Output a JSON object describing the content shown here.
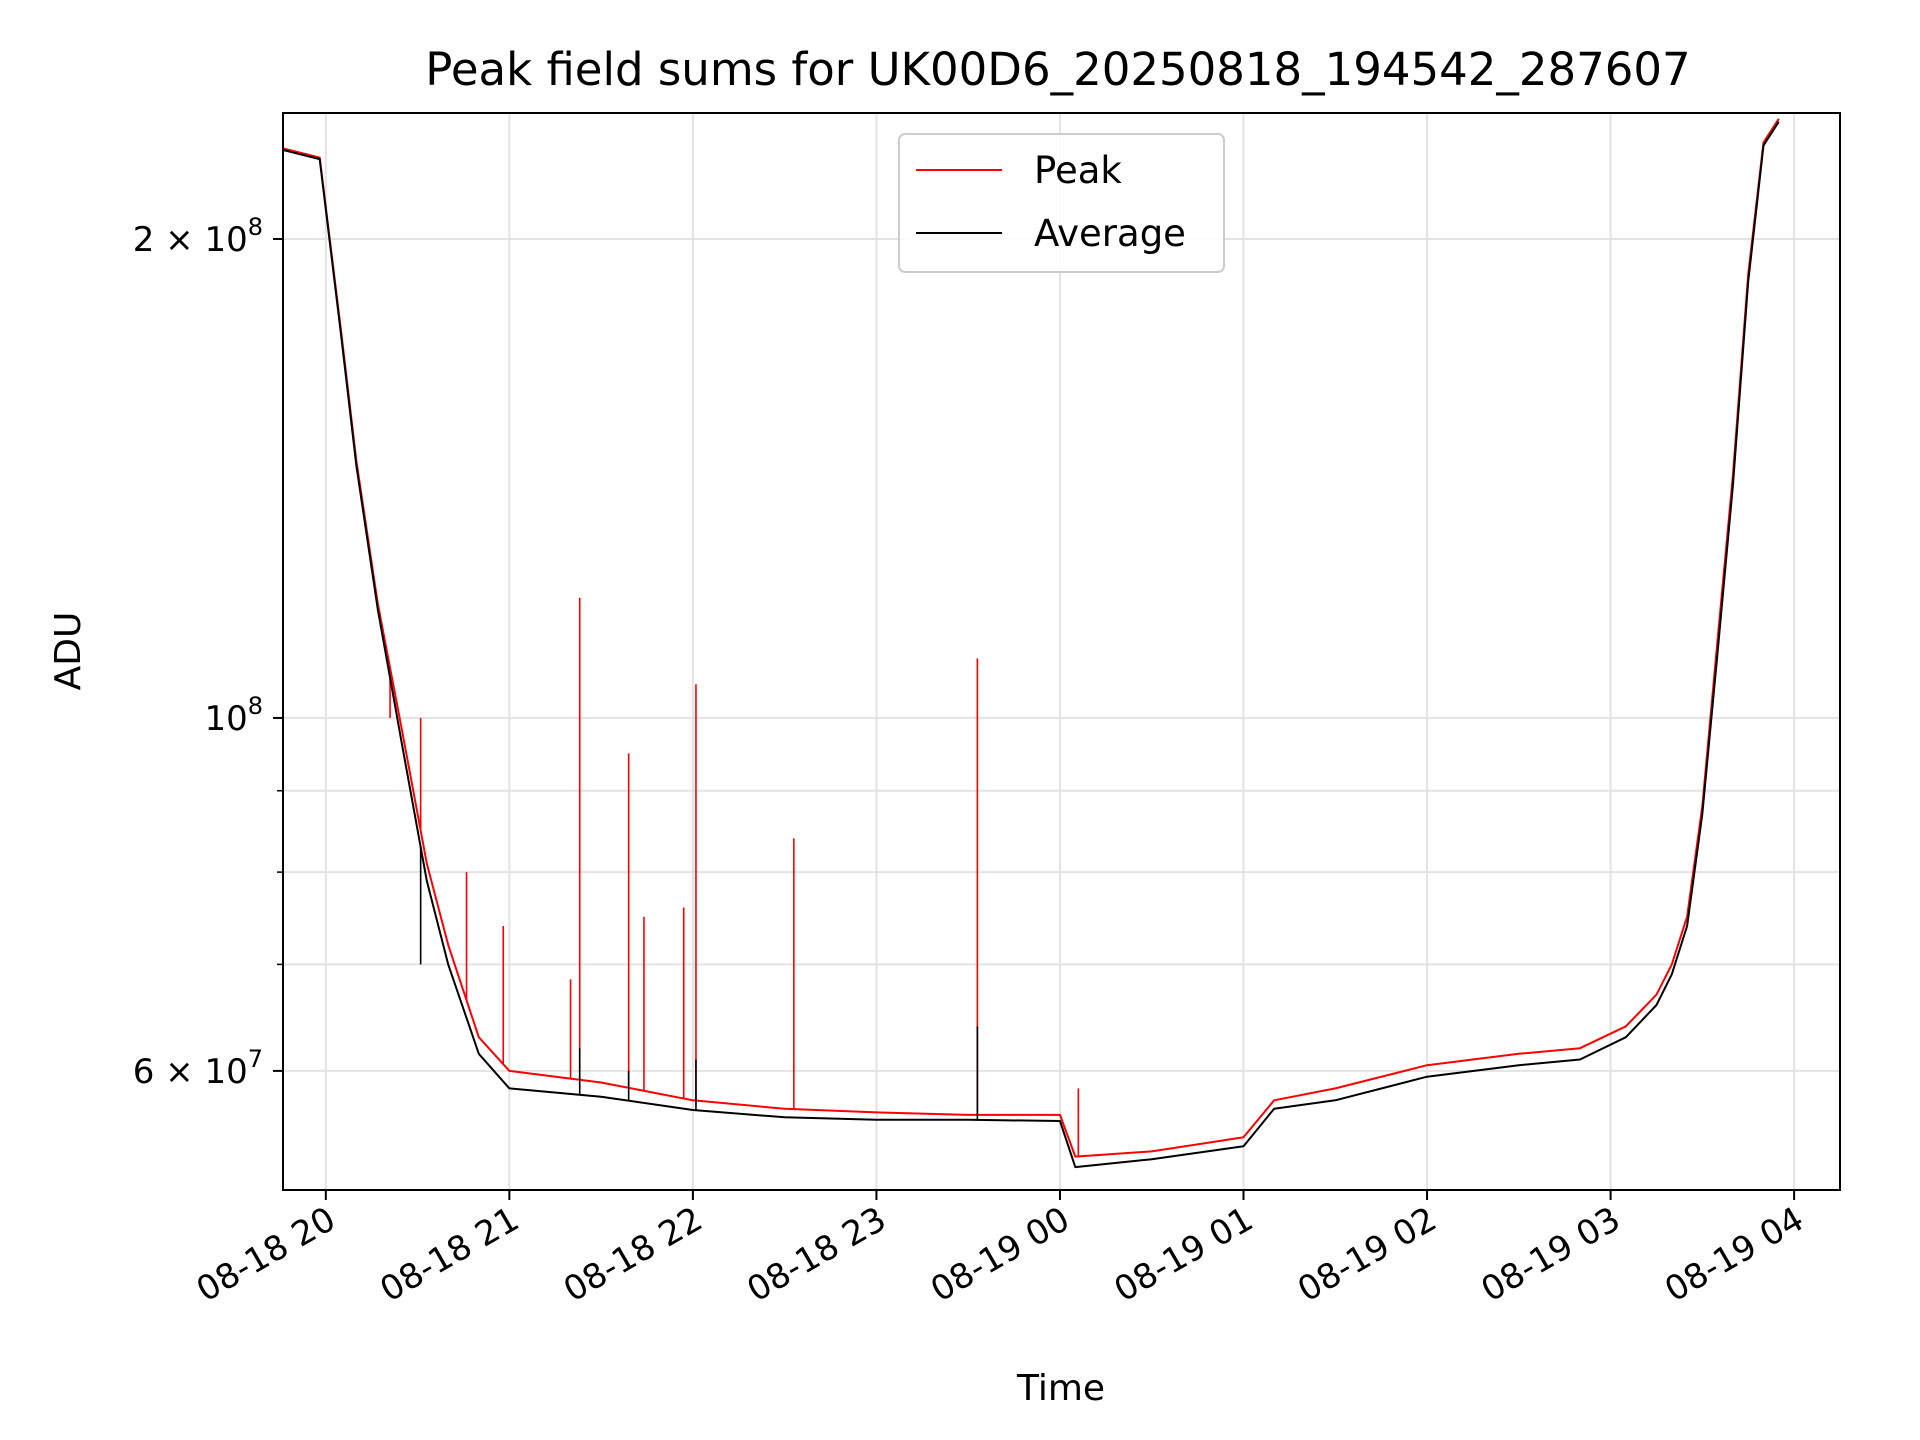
{
  "chart_data": {
    "type": "line",
    "title": "Peak field sums for UK00D6_20250818_194542_287607",
    "xlabel": "Time",
    "ylabel": "ADU",
    "yscale": "log",
    "ylim": [
      50500000,
      240000000
    ],
    "xlim": [
      "2025-08-18 19:46",
      "2025-08-19 04:15"
    ],
    "grid": true,
    "legend": "upper center",
    "x_ticks": [
      "08-18 20",
      "08-18 21",
      "08-18 22",
      "08-18 23",
      "08-19 00",
      "08-19 01",
      "08-19 02",
      "08-19 03",
      "08-19 04"
    ],
    "y_ticks": [
      {
        "value": 60000000,
        "mantissa": "6",
        "times": "×",
        "base": "10",
        "exp": "7"
      },
      {
        "value": 100000000,
        "mantissa": "",
        "times": "",
        "base": "10",
        "exp": "8"
      },
      {
        "value": 200000000,
        "mantissa": "2",
        "times": "×",
        "base": "10",
        "exp": "8"
      }
    ],
    "y_minor_ticks": [
      70000000,
      80000000,
      90000000
    ],
    "series": [
      {
        "name": "Peak",
        "color": "#ff0000",
        "x": [
          "2025-08-18 19:46",
          "2025-08-18 19:58",
          "2025-08-18 20:05",
          "2025-08-18 20:10",
          "2025-08-18 20:17",
          "2025-08-18 20:25",
          "2025-08-18 20:33",
          "2025-08-18 20:40",
          "2025-08-18 20:50",
          "2025-08-18 21:00",
          "2025-08-18 21:30",
          "2025-08-18 22:00",
          "2025-08-18 22:30",
          "2025-08-18 23:00",
          "2025-08-18 23:30",
          "2025-08-19 00:00",
          "2025-08-19 00:05",
          "2025-08-19 00:30",
          "2025-08-19 01:00",
          "2025-08-19 01:10",
          "2025-08-19 01:30",
          "2025-08-19 02:00",
          "2025-08-19 02:30",
          "2025-08-19 02:50",
          "2025-08-19 03:05",
          "2025-08-19 03:15",
          "2025-08-19 03:20",
          "2025-08-19 03:25",
          "2025-08-19 03:30",
          "2025-08-19 03:35",
          "2025-08-19 03:40",
          "2025-08-19 03:45",
          "2025-08-19 03:50",
          "2025-08-19 03:55"
        ],
        "y": [
          228000000,
          225000000,
          175000000,
          145000000,
          118000000,
          98000000,
          81000000,
          72000000,
          63000000,
          60000000,
          59000000,
          57500000,
          56800000,
          56500000,
          56300000,
          56300000,
          53000000,
          53400000,
          54500000,
          57500000,
          58500000,
          60500000,
          61500000,
          62000000,
          64000000,
          67000000,
          70000000,
          75000000,
          88000000,
          112000000,
          142000000,
          190000000,
          230000000,
          238000000
        ],
        "spikes": [
          {
            "x": "2025-08-18 20:21",
            "y": 100000000
          },
          {
            "x": "2025-08-18 20:31",
            "y": 100000000
          },
          {
            "x": "2025-08-18 20:46",
            "y": 80000000
          },
          {
            "x": "2025-08-18 20:58",
            "y": 74000000
          },
          {
            "x": "2025-08-18 21:20",
            "y": 68500000
          },
          {
            "x": "2025-08-18 21:23",
            "y": 119000000
          },
          {
            "x": "2025-08-18 21:39",
            "y": 95000000
          },
          {
            "x": "2025-08-18 21:44",
            "y": 75000000
          },
          {
            "x": "2025-08-18 21:57",
            "y": 76000000
          },
          {
            "x": "2025-08-18 22:01",
            "y": 105000000
          },
          {
            "x": "2025-08-18 22:33",
            "y": 84000000
          },
          {
            "x": "2025-08-18 23:33",
            "y": 109000000
          },
          {
            "x": "2025-08-19 00:06",
            "y": 58500000
          }
        ]
      },
      {
        "name": "Average",
        "color": "#000000",
        "x": [
          "2025-08-18 19:46",
          "2025-08-18 19:58",
          "2025-08-18 20:05",
          "2025-08-18 20:10",
          "2025-08-18 20:17",
          "2025-08-18 20:25",
          "2025-08-18 20:33",
          "2025-08-18 20:40",
          "2025-08-18 20:50",
          "2025-08-18 21:00",
          "2025-08-18 21:30",
          "2025-08-18 22:00",
          "2025-08-18 22:30",
          "2025-08-18 23:00",
          "2025-08-18 23:30",
          "2025-08-19 00:00",
          "2025-08-19 00:05",
          "2025-08-19 00:30",
          "2025-08-19 01:00",
          "2025-08-19 01:10",
          "2025-08-19 01:30",
          "2025-08-19 02:00",
          "2025-08-19 02:30",
          "2025-08-19 02:50",
          "2025-08-19 03:05",
          "2025-08-19 03:15",
          "2025-08-19 03:20",
          "2025-08-19 03:25",
          "2025-08-19 03:30",
          "2025-08-19 03:35",
          "2025-08-19 03:40",
          "2025-08-19 03:45",
          "2025-08-19 03:50",
          "2025-08-19 03:55"
        ],
        "y": [
          227500000,
          224500000,
          174000000,
          144000000,
          117000000,
          96000000,
          79000000,
          70000000,
          61500000,
          58500000,
          57800000,
          56700000,
          56100000,
          55900000,
          55900000,
          55800000,
          52200000,
          52800000,
          53800000,
          56800000,
          57500000,
          59500000,
          60500000,
          61000000,
          63000000,
          66000000,
          69000000,
          74000000,
          87000000,
          110000000,
          140000000,
          188000000,
          229000000,
          237000000
        ],
        "spikes": [
          {
            "x": "2025-08-18 20:31",
            "y": 70000000
          },
          {
            "x": "2025-08-18 21:23",
            "y": 62000000
          },
          {
            "x": "2025-08-18 21:39",
            "y": 60000000
          },
          {
            "x": "2025-08-18 22:01",
            "y": 61000000
          },
          {
            "x": "2025-08-18 23:33",
            "y": 64000000
          }
        ]
      }
    ]
  }
}
